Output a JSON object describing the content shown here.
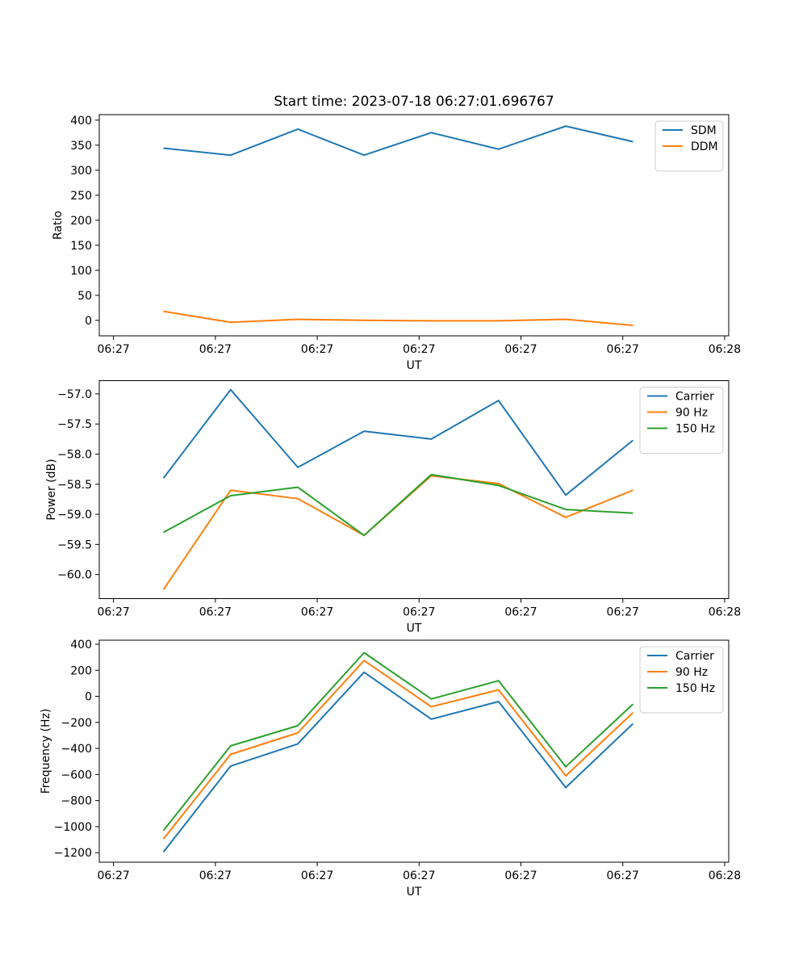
{
  "figure": {
    "title": "Start time: 2023-07-18 06:27:01.696767",
    "background": "#ffffff",
    "colors": {
      "blue": "#1f77b4",
      "orange": "#ff7f0e",
      "green": "#2ca02c"
    }
  },
  "chart_data": [
    {
      "name": "ratio",
      "type": "line",
      "title": "Start time: 2023-07-18 06:27:01.696767",
      "xlabel": "UT",
      "ylabel": "Ratio",
      "legend_position": "upper right",
      "grid": false,
      "x_seconds": [
        4.9,
        11.5,
        18.1,
        24.6,
        31.2,
        37.8,
        44.4,
        51.0
      ],
      "xlim": [
        -1.4,
        60.4
      ],
      "x_ticks": [
        {
          "t": 0,
          "label": "06:27"
        },
        {
          "t": 10,
          "label": "06:27"
        },
        {
          "t": 20,
          "label": "06:27"
        },
        {
          "t": 30,
          "label": "06:27"
        },
        {
          "t": 40,
          "label": "06:27"
        },
        {
          "t": 50,
          "label": "06:27"
        },
        {
          "t": 60,
          "label": "06:28"
        }
      ],
      "ylim": [
        -31,
        411
      ],
      "y_ticks": [
        {
          "v": 0,
          "label": "0"
        },
        {
          "v": 50,
          "label": "50"
        },
        {
          "v": 100,
          "label": "100"
        },
        {
          "v": 150,
          "label": "150"
        },
        {
          "v": 200,
          "label": "200"
        },
        {
          "v": 250,
          "label": "250"
        },
        {
          "v": 300,
          "label": "300"
        },
        {
          "v": 350,
          "label": "350"
        },
        {
          "v": 400,
          "label": "400"
        }
      ],
      "series": [
        {
          "name": "SDM",
          "color": "#1f77b4",
          "values": [
            344,
            330,
            382,
            330,
            375,
            342,
            388,
            357
          ]
        },
        {
          "name": "DDM",
          "color": "#ff7f0e",
          "values": [
            18,
            -4,
            2,
            0,
            -1,
            -1,
            2,
            -10
          ]
        }
      ]
    },
    {
      "name": "power",
      "type": "line",
      "title": "",
      "xlabel": "UT",
      "ylabel": "Power (dB)",
      "legend_position": "upper right",
      "grid": false,
      "x_seconds": [
        4.9,
        11.5,
        18.1,
        24.6,
        31.2,
        37.8,
        44.4,
        51.0
      ],
      "xlim": [
        -1.4,
        60.4
      ],
      "x_ticks": [
        {
          "t": 0,
          "label": "06:27"
        },
        {
          "t": 10,
          "label": "06:27"
        },
        {
          "t": 20,
          "label": "06:27"
        },
        {
          "t": 30,
          "label": "06:27"
        },
        {
          "t": 40,
          "label": "06:27"
        },
        {
          "t": 50,
          "label": "06:27"
        },
        {
          "t": 60,
          "label": "06:28"
        }
      ],
      "ylim": [
        -60.4,
        -56.78
      ],
      "y_ticks": [
        {
          "v": -57.0,
          "label": "−57.0"
        },
        {
          "v": -57.5,
          "label": "−57.5"
        },
        {
          "v": -58.0,
          "label": "−58.0"
        },
        {
          "v": -58.5,
          "label": "−58.5"
        },
        {
          "v": -59.0,
          "label": "−59.0"
        },
        {
          "v": -59.5,
          "label": "−59.5"
        },
        {
          "v": -60.0,
          "label": "−60.0"
        }
      ],
      "series": [
        {
          "name": "Carrier",
          "color": "#1f77b4",
          "values": [
            -58.4,
            -56.93,
            -58.22,
            -57.62,
            -57.75,
            -57.11,
            -58.68,
            -57.77
          ]
        },
        {
          "name": "90 Hz",
          "color": "#ff7f0e",
          "values": [
            -60.25,
            -58.6,
            -58.74,
            -59.35,
            -58.36,
            -58.49,
            -59.05,
            -58.6
          ]
        },
        {
          "name": "150 Hz",
          "color": "#2ca02c",
          "values": [
            -59.3,
            -58.69,
            -58.55,
            -59.35,
            -58.34,
            -58.52,
            -58.92,
            -58.98
          ]
        }
      ]
    },
    {
      "name": "frequency",
      "type": "line",
      "title": "",
      "xlabel": "UT",
      "ylabel": "Frequency (Hz)",
      "legend_position": "upper right",
      "grid": false,
      "x_seconds": [
        4.9,
        11.5,
        18.1,
        24.6,
        31.2,
        37.8,
        44.4,
        51.0
      ],
      "xlim": [
        -1.4,
        60.4
      ],
      "x_ticks": [
        {
          "t": 0,
          "label": "06:27"
        },
        {
          "t": 10,
          "label": "06:27"
        },
        {
          "t": 20,
          "label": "06:27"
        },
        {
          "t": 30,
          "label": "06:27"
        },
        {
          "t": 40,
          "label": "06:27"
        },
        {
          "t": 50,
          "label": "06:27"
        },
        {
          "t": 60,
          "label": "06:28"
        }
      ],
      "ylim": [
        -1273,
        431
      ],
      "y_ticks": [
        {
          "v": 400,
          "label": "400"
        },
        {
          "v": 200,
          "label": "200"
        },
        {
          "v": 0,
          "label": "0"
        },
        {
          "v": -200,
          "label": "−200"
        },
        {
          "v": -400,
          "label": "−400"
        },
        {
          "v": -600,
          "label": "−600"
        },
        {
          "v": -800,
          "label": "−800"
        },
        {
          "v": -1000,
          "label": "−1000"
        },
        {
          "v": -1200,
          "label": "−1200"
        }
      ],
      "series": [
        {
          "name": "Carrier",
          "color": "#1f77b4",
          "values": [
            -1195,
            -535,
            -365,
            185,
            -175,
            -40,
            -700,
            -210
          ]
        },
        {
          "name": "90 Hz",
          "color": "#ff7f0e",
          "values": [
            -1095,
            -445,
            -280,
            275,
            -80,
            50,
            -610,
            -125
          ]
        },
        {
          "name": "150 Hz",
          "color": "#2ca02c",
          "values": [
            -1030,
            -380,
            -225,
            335,
            -20,
            120,
            -540,
            -60
          ]
        }
      ]
    }
  ]
}
